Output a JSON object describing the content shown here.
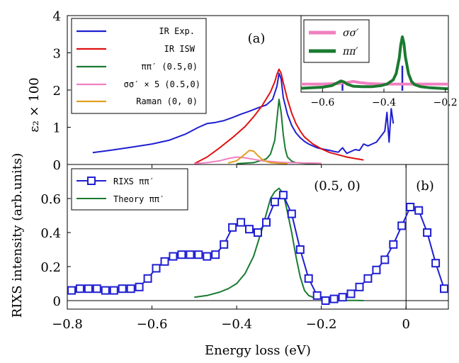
{
  "chart_data": [
    {
      "type": "line",
      "panel_label": "(a)",
      "ylabel": "ε₂ × 100",
      "xlim": [
        -0.8,
        0.1
      ],
      "ylim": [
        0,
        4
      ],
      "yticks": [
        "0",
        "1",
        "2",
        "3",
        "4"
      ],
      "series": [
        {
          "name": "IR Exp.",
          "color": "#1f1fd0",
          "x": [
            -0.74,
            -0.7,
            -0.65,
            -0.6,
            -0.56,
            -0.52,
            -0.49,
            -0.47,
            -0.45,
            -0.43,
            -0.41,
            -0.39,
            -0.37,
            -0.35,
            -0.33,
            -0.315,
            -0.305,
            -0.3,
            -0.295,
            -0.29,
            -0.28,
            -0.27,
            -0.26,
            -0.25,
            -0.24,
            -0.23,
            -0.22,
            -0.21,
            -0.2,
            -0.19,
            -0.18,
            -0.17,
            -0.16,
            -0.15,
            -0.14,
            -0.13,
            -0.12,
            -0.11,
            -0.1,
            -0.09,
            -0.08,
            -0.07,
            -0.06,
            -0.05,
            -0.045,
            -0.04,
            -0.035,
            -0.03
          ],
          "y": [
            0.32,
            0.38,
            0.46,
            0.55,
            0.65,
            0.82,
            1.0,
            1.1,
            1.13,
            1.18,
            1.26,
            1.35,
            1.43,
            1.52,
            1.6,
            1.75,
            2.1,
            2.45,
            2.3,
            1.8,
            1.35,
            1.05,
            0.85,
            0.72,
            0.62,
            0.55,
            0.5,
            0.45,
            0.42,
            0.4,
            0.38,
            0.35,
            0.33,
            0.45,
            0.3,
            0.35,
            0.4,
            0.38,
            0.55,
            0.5,
            0.55,
            0.6,
            0.75,
            0.9,
            1.4,
            0.6,
            1.5,
            1.1
          ]
        },
        {
          "name": "IR ISW",
          "color": "#e01010",
          "x": [
            -0.5,
            -0.47,
            -0.44,
            -0.41,
            -0.38,
            -0.36,
            -0.34,
            -0.32,
            -0.31,
            -0.305,
            -0.3,
            -0.295,
            -0.29,
            -0.28,
            -0.27,
            -0.26,
            -0.25,
            -0.24,
            -0.22,
            -0.2,
            -0.18,
            -0.16,
            -0.14,
            -0.12,
            -0.1
          ],
          "y": [
            0.02,
            0.2,
            0.45,
            0.72,
            1.02,
            1.28,
            1.58,
            1.95,
            2.22,
            2.42,
            2.56,
            2.45,
            2.2,
            1.75,
            1.38,
            1.1,
            0.9,
            0.74,
            0.55,
            0.42,
            0.32,
            0.26,
            0.2,
            0.16,
            0.12
          ]
        },
        {
          "name": "ππ′ (0.5,0)",
          "color": "#1a7a30",
          "x": [
            -0.4,
            -0.36,
            -0.33,
            -0.32,
            -0.31,
            -0.305,
            -0.3,
            -0.295,
            -0.29,
            -0.285,
            -0.28,
            -0.27,
            -0.26,
            -0.24,
            -0.2
          ],
          "y": [
            0.02,
            0.05,
            0.15,
            0.28,
            0.65,
            1.2,
            1.75,
            1.4,
            0.8,
            0.4,
            0.2,
            0.09,
            0.05,
            0.03,
            0.02
          ]
        },
        {
          "name": "σσ′ × 5 (0.5,0)",
          "color": "#f080c0",
          "x": [
            -0.5,
            -0.47,
            -0.44,
            -0.42,
            -0.4,
            -0.38,
            -0.36,
            -0.34,
            -0.32,
            -0.3,
            -0.28,
            -0.26,
            -0.24,
            -0.22,
            -0.2
          ],
          "y": [
            0.02,
            0.05,
            0.1,
            0.16,
            0.2,
            0.18,
            0.14,
            0.1,
            0.08,
            0.06,
            0.05,
            0.05,
            0.04,
            0.04,
            0.03
          ]
        },
        {
          "name": "Raman (0, 0)",
          "color": "#e0a020",
          "x": [
            -0.42,
            -0.4,
            -0.38,
            -0.37,
            -0.36,
            -0.35,
            -0.34,
            -0.33,
            -0.32,
            -0.3,
            -0.28
          ],
          "y": [
            0.04,
            0.1,
            0.28,
            0.38,
            0.36,
            0.24,
            0.14,
            0.08,
            0.05,
            0.03,
            0.02
          ]
        }
      ]
    },
    {
      "type": "line",
      "inset": true,
      "xlim": [
        -0.67,
        -0.19
      ],
      "xticks": [
        "−0.6",
        "−0.4",
        "−0.2"
      ],
      "series": [
        {
          "name": "σσ′",
          "color": "#f080c0",
          "x": [
            -0.67,
            -0.6,
            -0.55,
            -0.52,
            -0.5,
            -0.48,
            -0.45,
            -0.4,
            -0.35,
            -0.3,
            -0.25,
            -0.19
          ],
          "y": [
            0.1,
            0.1,
            0.11,
            0.13,
            0.15,
            0.13,
            0.11,
            0.1,
            0.1,
            0.1,
            0.1,
            0.1
          ]
        },
        {
          "name": "ππ′",
          "color": "#1a7a30",
          "x": [
            -0.67,
            -0.6,
            -0.57,
            -0.55,
            -0.54,
            -0.53,
            -0.52,
            -0.5,
            -0.47,
            -0.44,
            -0.41,
            -0.39,
            -0.37,
            -0.36,
            -0.35,
            -0.345,
            -0.34,
            -0.335,
            -0.33,
            -0.32,
            -0.31,
            -0.3,
            -0.28,
            -0.25,
            -0.22,
            -0.19
          ],
          "y": [
            0.02,
            0.04,
            0.07,
            0.13,
            0.16,
            0.14,
            0.1,
            0.06,
            0.05,
            0.05,
            0.07,
            0.1,
            0.18,
            0.3,
            0.6,
            0.85,
            1.0,
            0.88,
            0.62,
            0.3,
            0.15,
            0.09,
            0.05,
            0.03,
            0.02,
            0.01
          ]
        }
      ],
      "sticks": [
        {
          "x": -0.535,
          "height": 0.12,
          "color": "#2020c0"
        },
        {
          "x": -0.34,
          "height": 0.45,
          "color": "#2020c0"
        }
      ]
    },
    {
      "type": "line",
      "panel_label": "(b)",
      "annotation": "(0.5, 0)",
      "xlabel": "Energy loss (eV)",
      "ylabel": "RIXS intensity (arb.units)",
      "xlim": [
        -0.8,
        0.1
      ],
      "ylim": [
        -0.05,
        0.8
      ],
      "xticks": [
        "−0.8",
        "−0.6",
        "−0.4",
        "−0.2",
        "0"
      ],
      "yticks": [
        "0",
        "0.2",
        "0.4",
        "0.6"
      ],
      "series": [
        {
          "name": "RIXS ππ′",
          "color": "#1f1fd0",
          "marker": "square",
          "x": [
            -0.79,
            -0.77,
            -0.75,
            -0.73,
            -0.71,
            -0.69,
            -0.67,
            -0.65,
            -0.63,
            -0.61,
            -0.59,
            -0.57,
            -0.55,
            -0.53,
            -0.51,
            -0.49,
            -0.47,
            -0.45,
            -0.43,
            -0.41,
            -0.39,
            -0.37,
            -0.35,
            -0.33,
            -0.31,
            -0.29,
            -0.27,
            -0.25,
            -0.23,
            -0.21,
            -0.19,
            -0.17,
            -0.15,
            -0.13,
            -0.11,
            -0.09,
            -0.07,
            -0.05,
            -0.03,
            -0.01,
            0.01,
            0.03,
            0.05,
            0.07,
            0.09
          ],
          "y": [
            0.06,
            0.07,
            0.07,
            0.07,
            0.06,
            0.06,
            0.07,
            0.07,
            0.08,
            0.13,
            0.19,
            0.23,
            0.26,
            0.27,
            0.27,
            0.27,
            0.26,
            0.27,
            0.33,
            0.43,
            0.46,
            0.42,
            0.4,
            0.46,
            0.58,
            0.62,
            0.51,
            0.3,
            0.13,
            0.03,
            0.0,
            0.01,
            0.02,
            0.04,
            0.08,
            0.13,
            0.18,
            0.24,
            0.33,
            0.44,
            0.55,
            0.53,
            0.4,
            0.22,
            0.07
          ]
        },
        {
          "name": "Theory ππ′",
          "color": "#1a7a30",
          "x": [
            -0.5,
            -0.47,
            -0.44,
            -0.42,
            -0.4,
            -0.38,
            -0.36,
            -0.34,
            -0.32,
            -0.31,
            -0.3,
            -0.29,
            -0.28,
            -0.27,
            -0.26,
            -0.25,
            -0.24,
            -0.23,
            -0.22,
            -0.2,
            -0.18,
            -0.16,
            -0.14,
            -0.12,
            -0.1
          ],
          "y": [
            0.02,
            0.03,
            0.05,
            0.07,
            0.1,
            0.16,
            0.26,
            0.42,
            0.6,
            0.64,
            0.66,
            0.63,
            0.52,
            0.4,
            0.26,
            0.14,
            0.06,
            0.03,
            0.02,
            0.01,
            0.005,
            0.002,
            0.001,
            0.001,
            0.0
          ]
        }
      ]
    }
  ]
}
